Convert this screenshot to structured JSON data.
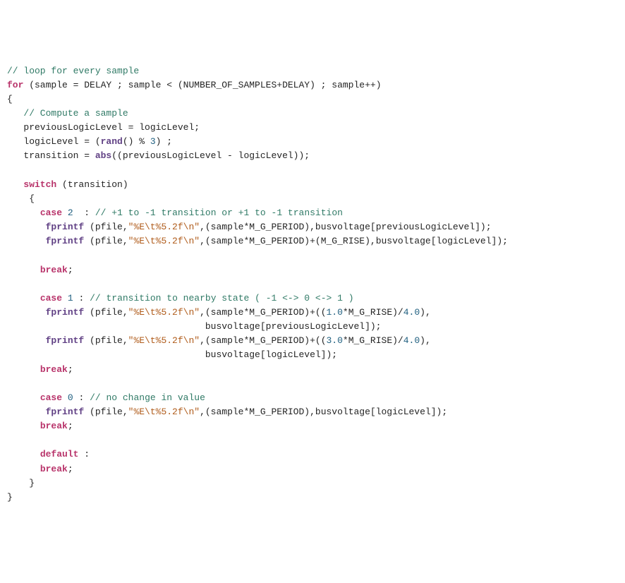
{
  "colors": {
    "comment": "#307a66",
    "keyword": "#b8336a",
    "func": "#614185",
    "number": "#206080",
    "string": "#b05c1b",
    "plain": "#242424"
  },
  "fontSize": 13,
  "lineHeight": 1.55,
  "background": "#ffffff",
  "tokens": [
    [
      [
        "comment",
        "// loop for every sample"
      ]
    ],
    [
      [
        "keyword",
        "for"
      ],
      [
        "plain",
        " (sample = DELAY ; sample < (NUMBER_OF_SAMPLES+DELAY) ; sample++)"
      ]
    ],
    [
      [
        "plain",
        "{"
      ]
    ],
    [
      [
        "plain",
        "   "
      ],
      [
        "comment",
        "// Compute a sample"
      ]
    ],
    [
      [
        "plain",
        "   previousLogicLevel = logicLevel;"
      ]
    ],
    [
      [
        "plain",
        "   logicLevel = ("
      ],
      [
        "func",
        "rand"
      ],
      [
        "plain",
        "() % "
      ],
      [
        "number",
        "3"
      ],
      [
        "plain",
        ") ;"
      ]
    ],
    [
      [
        "plain",
        "   transition = "
      ],
      [
        "func",
        "abs"
      ],
      [
        "plain",
        "((previousLogicLevel - logicLevel));"
      ]
    ],
    [],
    [
      [
        "plain",
        "   "
      ],
      [
        "keyword",
        "switch"
      ],
      [
        "plain",
        " (transition)"
      ]
    ],
    [
      [
        "plain",
        "    {"
      ]
    ],
    [
      [
        "plain",
        "      "
      ],
      [
        "keyword",
        "case"
      ],
      [
        "plain",
        " "
      ],
      [
        "number",
        "2"
      ],
      [
        "plain",
        "  : "
      ],
      [
        "comment",
        "// +1 to -1 transition or +1 to -1 transition"
      ]
    ],
    [
      [
        "plain",
        "       "
      ],
      [
        "func",
        "fprintf"
      ],
      [
        "plain",
        " (pfile,"
      ],
      [
        "string",
        "\"%E\\t%5.2f\\n\""
      ],
      [
        "plain",
        ",(sample*M_G_PERIOD),busvoltage[previousLogicLevel]);"
      ]
    ],
    [
      [
        "plain",
        "       "
      ],
      [
        "func",
        "fprintf"
      ],
      [
        "plain",
        " (pfile,"
      ],
      [
        "string",
        "\"%E\\t%5.2f\\n\""
      ],
      [
        "plain",
        ",(sample*M_G_PERIOD)+(M_G_RISE),busvoltage[logicLevel]);"
      ]
    ],
    [],
    [
      [
        "plain",
        "      "
      ],
      [
        "keyword",
        "break"
      ],
      [
        "plain",
        ";"
      ]
    ],
    [],
    [
      [
        "plain",
        "      "
      ],
      [
        "keyword",
        "case"
      ],
      [
        "plain",
        " "
      ],
      [
        "number",
        "1"
      ],
      [
        "plain",
        " : "
      ],
      [
        "comment",
        "// transition to nearby state ( -1 <-> 0 <-> 1 )"
      ]
    ],
    [
      [
        "plain",
        "       "
      ],
      [
        "func",
        "fprintf"
      ],
      [
        "plain",
        " (pfile,"
      ],
      [
        "string",
        "\"%E\\t%5.2f\\n\""
      ],
      [
        "plain",
        ",(sample*M_G_PERIOD)+(("
      ],
      [
        "number",
        "1.0"
      ],
      [
        "plain",
        "*M_G_RISE)/"
      ],
      [
        "number",
        "4.0"
      ],
      [
        "plain",
        "),"
      ]
    ],
    [
      [
        "plain",
        "                                    busvoltage[previousLogicLevel]);"
      ]
    ],
    [
      [
        "plain",
        "       "
      ],
      [
        "func",
        "fprintf"
      ],
      [
        "plain",
        " (pfile,"
      ],
      [
        "string",
        "\"%E\\t%5.2f\\n\""
      ],
      [
        "plain",
        ",(sample*M_G_PERIOD)+(("
      ],
      [
        "number",
        "3.0"
      ],
      [
        "plain",
        "*M_G_RISE)/"
      ],
      [
        "number",
        "4.0"
      ],
      [
        "plain",
        "),"
      ]
    ],
    [
      [
        "plain",
        "                                    busvoltage[logicLevel]);"
      ]
    ],
    [
      [
        "plain",
        "      "
      ],
      [
        "keyword",
        "break"
      ],
      [
        "plain",
        ";"
      ]
    ],
    [],
    [
      [
        "plain",
        "      "
      ],
      [
        "keyword",
        "case"
      ],
      [
        "plain",
        " "
      ],
      [
        "number",
        "0"
      ],
      [
        "plain",
        " : "
      ],
      [
        "comment",
        "// no change in value"
      ]
    ],
    [
      [
        "plain",
        "       "
      ],
      [
        "func",
        "fprintf"
      ],
      [
        "plain",
        " (pfile,"
      ],
      [
        "string",
        "\"%E\\t%5.2f\\n\""
      ],
      [
        "plain",
        ",(sample*M_G_PERIOD),busvoltage[logicLevel]);"
      ]
    ],
    [
      [
        "plain",
        "      "
      ],
      [
        "keyword",
        "break"
      ],
      [
        "plain",
        ";"
      ]
    ],
    [],
    [
      [
        "plain",
        "      "
      ],
      [
        "keyword",
        "default"
      ],
      [
        "plain",
        " :"
      ]
    ],
    [
      [
        "plain",
        "      "
      ],
      [
        "keyword",
        "break"
      ],
      [
        "plain",
        ";"
      ]
    ],
    [
      [
        "plain",
        "    }"
      ]
    ],
    [
      [
        "plain",
        "}"
      ]
    ]
  ]
}
